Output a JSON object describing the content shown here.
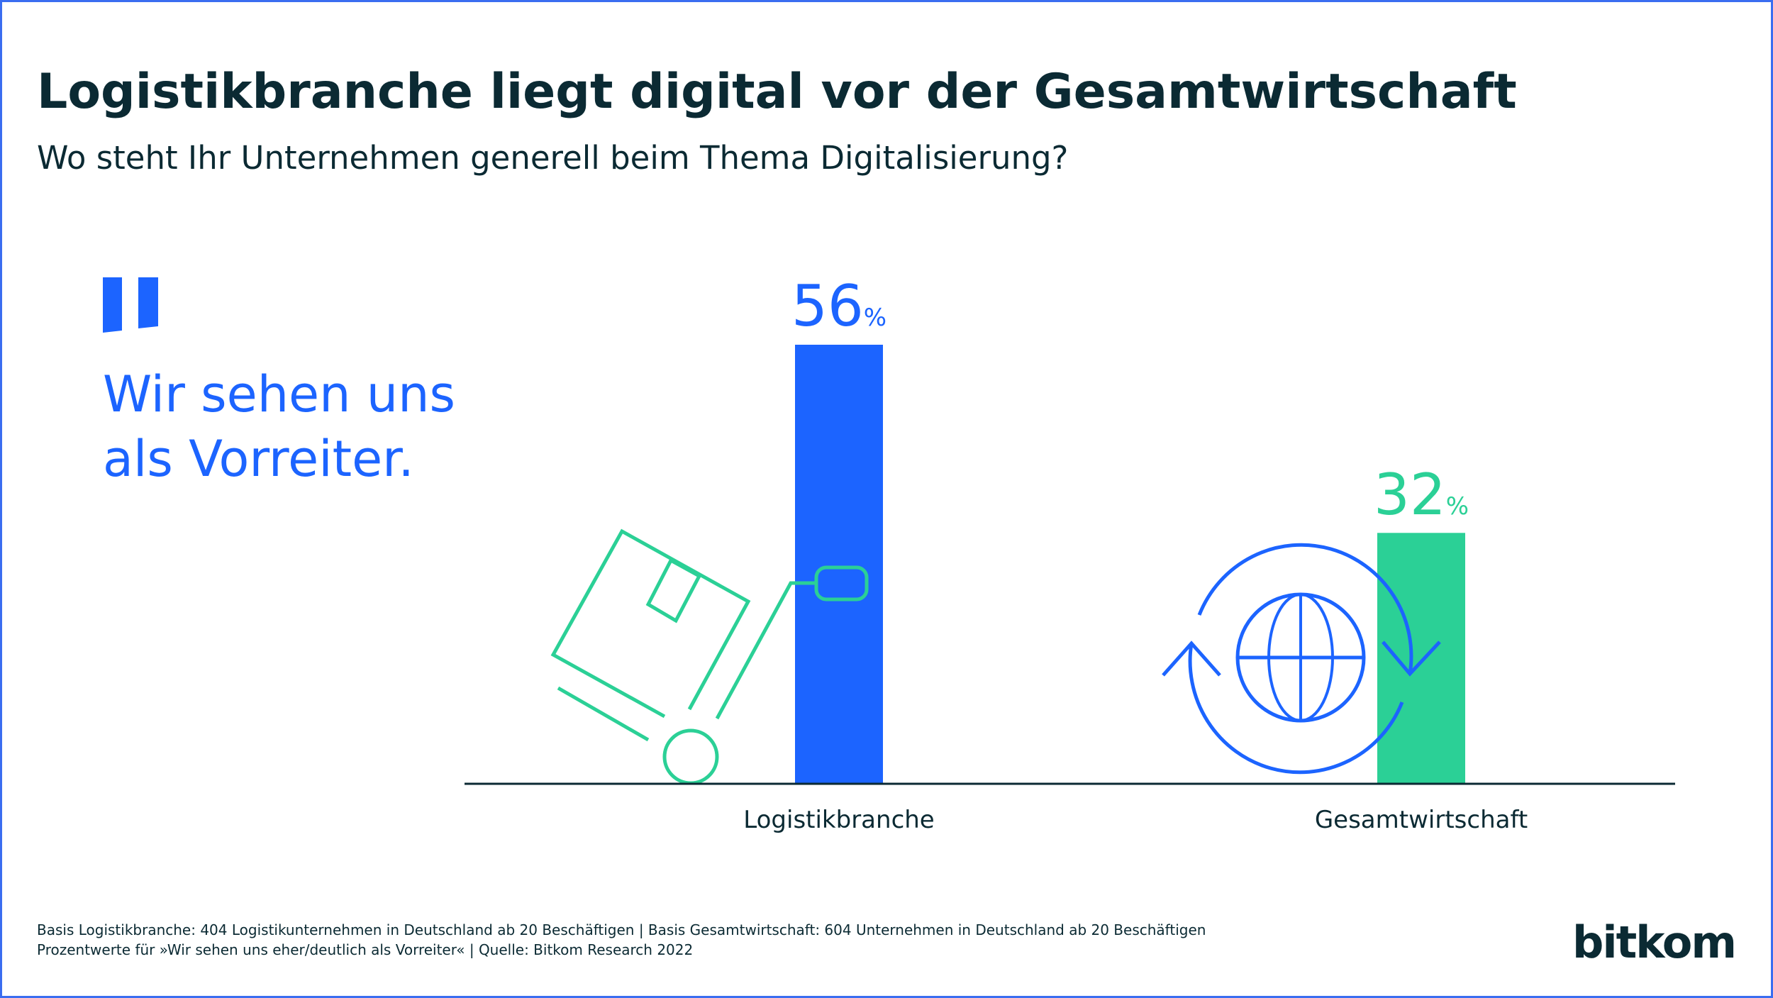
{
  "title": "Logistikbranche liegt digital vor der Gesamtwirtschaft",
  "subtitle": "Wo steht Ihr Unternehmen generell beim Thema Digitalisierung?",
  "quote": {
    "line1": "Wir sehen uns",
    "line2": "als Vorreiter."
  },
  "footer": {
    "line1": "Basis Logistikbranche: 404 Logistikunternehmen in Deutschland ab 20 Beschäftigen | Basis Gesamtwirtschaft: 604 Unternehmen in Deutschland ab 20 Beschäftigen",
    "line2": "Prozentwerte für »Wir sehen uns eher/deutlich als Vorreiter« | Quelle: Bitkom Research 2022"
  },
  "logo": "bitkom",
  "colors": {
    "blue": "#1c64ff",
    "green": "#2bd096",
    "text": "#0b2a33"
  },
  "icons": [
    "hand-truck-icon",
    "globe-refresh-icon",
    "quote-mark-icon"
  ],
  "chart_data": {
    "type": "bar",
    "categories": [
      "Logistikbranche",
      "Gesamtwirtschaft"
    ],
    "values": [
      56,
      32
    ],
    "value_labels": [
      "56",
      "32"
    ],
    "unit": "%",
    "bar_colors": [
      "#1c64ff",
      "#2bd096"
    ],
    "ylim": [
      0,
      56
    ],
    "grid": false
  }
}
